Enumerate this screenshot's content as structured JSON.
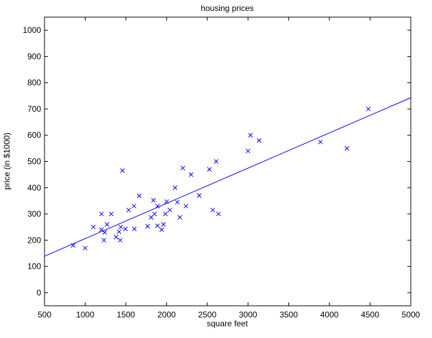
{
  "chart_data": {
    "type": "scatter",
    "title": "housing prices",
    "xlabel": "square feet",
    "ylabel": "price (in $1000)",
    "xlim": [
      500,
      5000
    ],
    "ylim": [
      -50,
      1050
    ],
    "xticks": [
      500,
      1000,
      1500,
      2000,
      2500,
      3000,
      3500,
      4000,
      4500,
      5000
    ],
    "yticks": [
      0,
      100,
      200,
      300,
      400,
      500,
      600,
      700,
      800,
      900,
      1000
    ],
    "grid": false,
    "legend": "none",
    "colors": {
      "marker": "#0000ff",
      "line": "#0000ff",
      "axes": "#000000"
    },
    "series": [
      {
        "marker": "x",
        "points": [
          [
            852,
            180
          ],
          [
            1000,
            170
          ],
          [
            1100,
            250
          ],
          [
            1200,
            300
          ],
          [
            1200,
            240
          ],
          [
            1230,
            200
          ],
          [
            1240,
            230
          ],
          [
            1268,
            260
          ],
          [
            1320,
            300
          ],
          [
            1380,
            212
          ],
          [
            1416,
            232
          ],
          [
            1430,
            200
          ],
          [
            1437,
            250
          ],
          [
            1458,
            465
          ],
          [
            1494,
            243
          ],
          [
            1534,
            315
          ],
          [
            1600,
            330
          ],
          [
            1604,
            243
          ],
          [
            1664,
            369
          ],
          [
            1767,
            253
          ],
          [
            1811,
            287
          ],
          [
            1839,
            352
          ],
          [
            1852,
            300
          ],
          [
            1888,
            255
          ],
          [
            1890,
            330
          ],
          [
            1940,
            240
          ],
          [
            1962,
            260
          ],
          [
            1985,
            300
          ],
          [
            2000,
            347
          ],
          [
            2040,
            315
          ],
          [
            2104,
            400
          ],
          [
            2132,
            345
          ],
          [
            2162,
            287
          ],
          [
            2200,
            475
          ],
          [
            2238,
            330
          ],
          [
            2300,
            450
          ],
          [
            2400,
            370
          ],
          [
            2526,
            470
          ],
          [
            2567,
            315
          ],
          [
            2609,
            500
          ],
          [
            2637,
            300
          ],
          [
            3000,
            540
          ],
          [
            3031,
            600
          ],
          [
            3137,
            580
          ],
          [
            3890,
            574
          ],
          [
            4215,
            550
          ],
          [
            4478,
            700
          ]
        ]
      }
    ],
    "fit_line": {
      "x": [
        500,
        5000
      ],
      "y": [
        139,
        743
      ]
    }
  }
}
